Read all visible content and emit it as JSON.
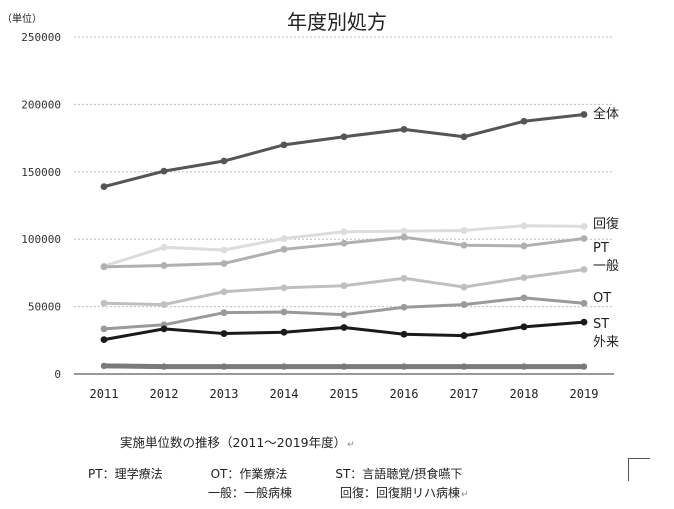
{
  "chart_data": {
    "type": "line",
    "title": "年度別処方",
    "unit_label": "（単位）",
    "x": [
      "2011",
      "2012",
      "2013",
      "2014",
      "2015",
      "2016",
      "2017",
      "2018",
      "2019"
    ],
    "ylim": [
      0,
      250000
    ],
    "yticks": [
      "0",
      "50000",
      "100000",
      "150000",
      "200000",
      "250000"
    ],
    "grid": true,
    "series": [
      {
        "name": "全体",
        "color": "#555555",
        "width": 3,
        "values": [
          139000,
          150500,
          158000,
          170000,
          176000,
          181500,
          176000,
          187500,
          192500
        ]
      },
      {
        "name": "回復",
        "color": "#dcdcdc",
        "width": 3,
        "values": [
          80000,
          94000,
          92000,
          100500,
          105500,
          106000,
          106500,
          110000,
          109500
        ]
      },
      {
        "name": "PT",
        "color": "#b0b0b0",
        "width": 3,
        "values": [
          79500,
          80500,
          82000,
          92500,
          97000,
          101500,
          95500,
          95000,
          100500
        ]
      },
      {
        "name": "一般",
        "color": "#bfbfbf",
        "width": 3,
        "values": [
          52500,
          51500,
          61000,
          64000,
          65500,
          71000,
          64500,
          71500,
          77500
        ]
      },
      {
        "name": "OT",
        "color": "#9a9a9a",
        "width": 3,
        "values": [
          33500,
          36500,
          45500,
          46000,
          44000,
          49500,
          51500,
          56500,
          52500
        ]
      },
      {
        "name": "ST",
        "color": "#1a1a1a",
        "width": 3,
        "values": [
          25500,
          33500,
          30000,
          31000,
          34500,
          29500,
          28500,
          35000,
          38500
        ]
      },
      {
        "name": "外来",
        "color": "#7a7a7a",
        "width": 5,
        "values": [
          6000,
          5500,
          5500,
          5500,
          5500,
          5500,
          5500,
          5500,
          5500
        ]
      }
    ]
  },
  "caption": "実施単位数の推移（2011～2019年度）",
  "legend": {
    "line1": "PT：理学療法　　　　OT：作業療法　　　　ST：言語聴覚/摂食嚥下",
    "line2": "一般：一般病棟　　　　回復：回復期リハ病棟"
  }
}
